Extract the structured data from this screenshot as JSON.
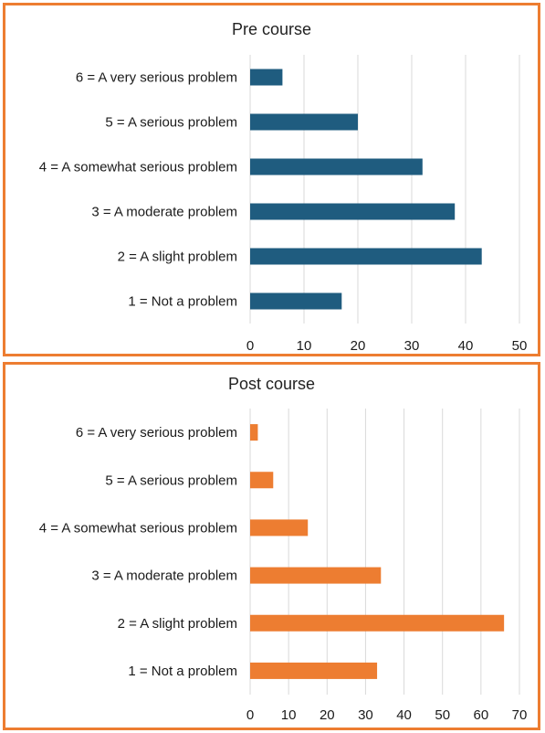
{
  "chart_data": [
    {
      "type": "bar",
      "orientation": "horizontal",
      "title": "Pre course",
      "categories": [
        "6 = A very serious problem",
        "5 = A serious problem",
        "4 = A somewhat serious problem",
        "3 = A moderate problem",
        "2 = A slight problem",
        "1 = Not a problem"
      ],
      "values": [
        6,
        20,
        32,
        38,
        43,
        17
      ],
      "xlim": [
        0,
        50
      ],
      "xticks": [
        0,
        10,
        20,
        30,
        40,
        50
      ],
      "grid": true,
      "color": "#1F5C7F"
    },
    {
      "type": "bar",
      "orientation": "horizontal",
      "title": "Post course",
      "categories": [
        "6 = A very serious problem",
        "5 = A serious problem",
        "4 = A somewhat serious problem",
        "3 = A moderate problem",
        "2 = A slight problem",
        "1 = Not a problem"
      ],
      "values": [
        2,
        6,
        15,
        34,
        66,
        33
      ],
      "xlim": [
        0,
        70
      ],
      "xticks": [
        0,
        10,
        20,
        30,
        40,
        50,
        60,
        70
      ],
      "grid": true,
      "color": "#ED7D31"
    }
  ]
}
